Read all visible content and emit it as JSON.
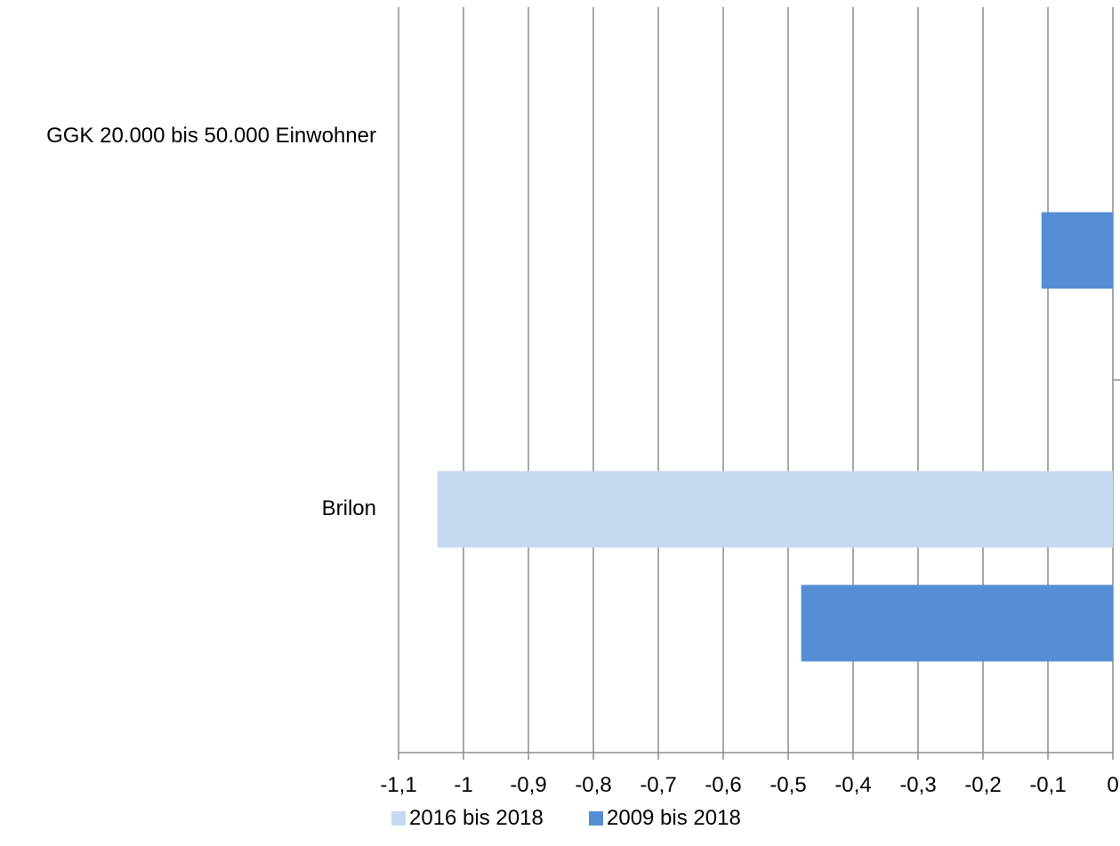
{
  "chart_data": {
    "type": "bar",
    "orientation": "horizontal",
    "categories": [
      "GGK 20.000 bis 50.000 Einwohner",
      "Brilon"
    ],
    "series": [
      {
        "name": "2016 bis 2018",
        "color": "#c6d9f1",
        "values": [
          null,
          -1.04
        ]
      },
      {
        "name": "2009 bis 2018",
        "color": "#558ed5",
        "values": [
          -0.11,
          -0.48
        ]
      }
    ],
    "xlim": [
      -1.1,
      0
    ],
    "xticks": [
      -1.1,
      -1,
      -0.9,
      -0.8,
      -0.7,
      -0.6,
      -0.5,
      -0.4,
      -0.3,
      -0.2,
      -0.1,
      0
    ],
    "xtick_labels": [
      "-1,1",
      "-1",
      "-0,9",
      "-0,8",
      "-0,7",
      "-0,6",
      "-0,5",
      "-0,4",
      "-0,3",
      "-0,2",
      "-0,1",
      "0"
    ],
    "grid": true,
    "gridline_color": "#8c8c8c",
    "legend_position": "bottom",
    "title": "",
    "xlabel": "",
    "ylabel": ""
  }
}
